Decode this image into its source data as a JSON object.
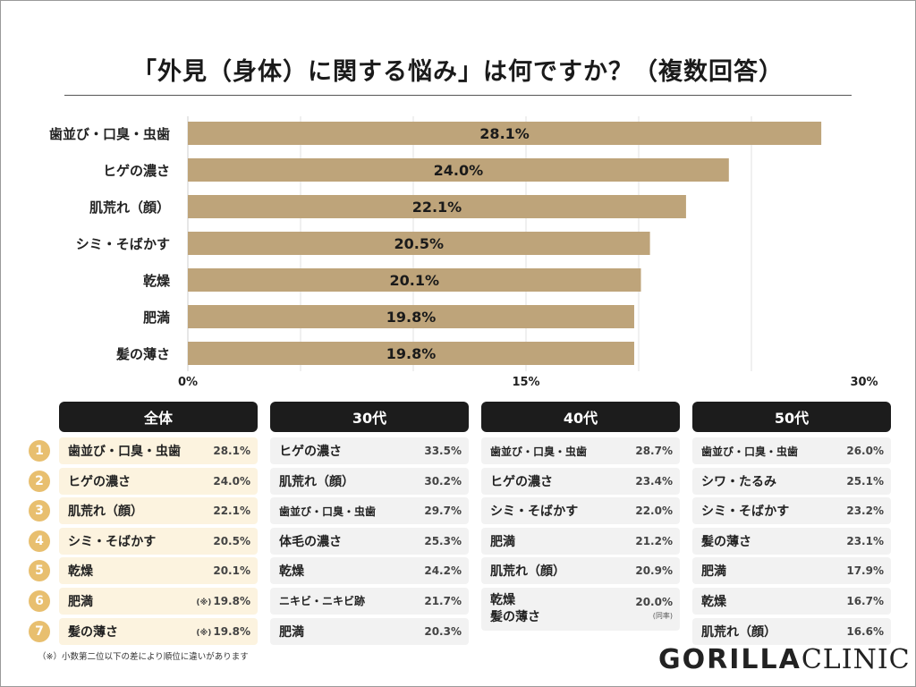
{
  "title": "「外見（身体）に関する悩み」は何ですか？（複数回答）",
  "chart_data": {
    "type": "bar",
    "orientation": "horizontal",
    "title": "「外見（身体）に関する悩み」は何ですか？（複数回答）",
    "categories": [
      "歯並び・口臭・虫歯",
      "ヒゲの濃さ",
      "肌荒れ（顔）",
      "シミ・そばかす",
      "乾燥",
      "肥満",
      "髪の薄さ"
    ],
    "values": [
      28.1,
      24.0,
      22.1,
      20.5,
      20.1,
      19.8,
      19.8
    ],
    "value_labels": [
      "28.1%",
      "24.0%",
      "22.1%",
      "20.5%",
      "20.1%",
      "19.8%",
      "19.8%"
    ],
    "xlim": [
      0,
      30
    ],
    "xticks": [
      0,
      15,
      30
    ],
    "xtick_labels": [
      "0%",
      "15%",
      "30%"
    ],
    "bar_color": "#bea47a",
    "grid": true
  },
  "tables": [
    {
      "header": "全体",
      "rows": [
        {
          "label": "歯並び・口臭・虫歯",
          "value": "28.1%",
          "note": ""
        },
        {
          "label": "ヒゲの濃さ",
          "value": "24.0%",
          "note": ""
        },
        {
          "label": "肌荒れ（顔）",
          "value": "22.1%",
          "note": ""
        },
        {
          "label": "シミ・そばかす",
          "value": "20.5%",
          "note": ""
        },
        {
          "label": "乾燥",
          "value": "20.1%",
          "note": ""
        },
        {
          "label": "肥満",
          "value": "19.8%",
          "note": "(※)"
        },
        {
          "label": "髪の薄さ",
          "value": "19.8%",
          "note": "(※)"
        }
      ]
    },
    {
      "header": "30代",
      "rows": [
        {
          "label": "ヒゲの濃さ",
          "value": "33.5%"
        },
        {
          "label": "肌荒れ（顔）",
          "value": "30.2%"
        },
        {
          "label": "歯並び・口臭・虫歯",
          "value": "29.7%"
        },
        {
          "label": "体毛の濃さ",
          "value": "25.3%"
        },
        {
          "label": "乾燥",
          "value": "24.2%"
        },
        {
          "label": "ニキビ・ニキビ跡",
          "value": "21.7%"
        },
        {
          "label": "肥満",
          "value": "20.3%"
        }
      ]
    },
    {
      "header": "40代",
      "rows": [
        {
          "label": "歯並び・口臭・虫歯",
          "value": "28.7%"
        },
        {
          "label": "ヒゲの濃さ",
          "value": "23.4%"
        },
        {
          "label": "シミ・そばかす",
          "value": "22.0%"
        },
        {
          "label": "肥満",
          "value": "21.2%"
        },
        {
          "label": "肌荒れ（顔）",
          "value": "20.9%"
        }
      ],
      "tie_row": {
        "label_1": "乾燥",
        "label_2": "髪の薄さ",
        "value": "20.0%",
        "sub": "(同率)"
      }
    },
    {
      "header": "50代",
      "rows": [
        {
          "label": "歯並び・口臭・虫歯",
          "value": "26.0%"
        },
        {
          "label": "シワ・たるみ",
          "value": "25.1%"
        },
        {
          "label": "シミ・そばかす",
          "value": "23.2%"
        },
        {
          "label": "髪の薄さ",
          "value": "23.1%"
        },
        {
          "label": "肥満",
          "value": "17.9%"
        },
        {
          "label": "乾燥",
          "value": "16.7%"
        },
        {
          "label": "肌荒れ（顔）",
          "value": "16.6%"
        }
      ]
    }
  ],
  "ranks": [
    "1",
    "2",
    "3",
    "4",
    "5",
    "6",
    "7"
  ],
  "footnote": "（※）小数第二位以下の差により順位に違いがあります",
  "logo": {
    "bold": "GORILLA",
    "light": "CLINIC"
  },
  "colors": {
    "bar": "#bea47a",
    "header_bg": "#1c1c1c",
    "rank_circle": "#e8bf6f",
    "highlight_row": "#fcf3df",
    "row": "#f2f2f2"
  }
}
